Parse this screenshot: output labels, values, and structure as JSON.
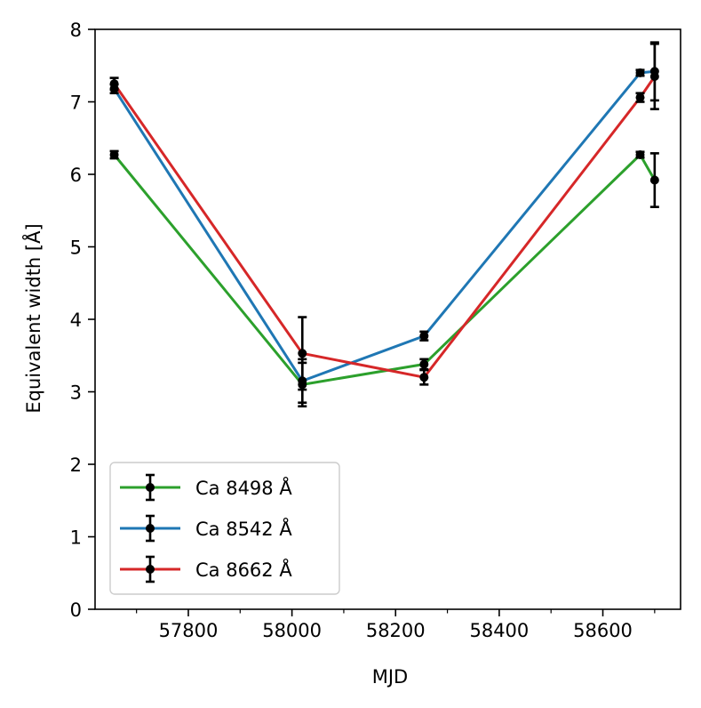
{
  "chart_data": {
    "type": "line",
    "title": "",
    "xlabel": "MJD",
    "ylabel": "Equivalent width [Å]",
    "xlim": [
      57620,
      58750
    ],
    "ylim": [
      0,
      8
    ],
    "x_ticks": [
      57800,
      58000,
      58200,
      58400,
      58600
    ],
    "x_tick_labels": [
      "57800",
      "58000",
      "58200",
      "58400",
      "58600"
    ],
    "x_minor_ticks": [
      57700,
      57900,
      58100,
      58300,
      58500,
      58700
    ],
    "y_ticks": [
      0,
      1,
      2,
      3,
      4,
      5,
      6,
      7,
      8
    ],
    "y_tick_labels": [
      "0",
      "1",
      "2",
      "3",
      "4",
      "5",
      "6",
      "7",
      "8"
    ],
    "legend_position": "lower-left",
    "marker_color": "#000000",
    "series": [
      {
        "name": "Ca 8498 Å",
        "color": "#2ca02c",
        "x": [
          57657,
          58020,
          58255,
          58672,
          58700
        ],
        "y": [
          6.27,
          3.1,
          3.38,
          6.27,
          5.92
        ],
        "err": [
          0.05,
          0.3,
          0.07,
          0.04,
          0.37
        ]
      },
      {
        "name": "Ca 8542 Å",
        "color": "#1f77b4",
        "x": [
          57657,
          58020,
          58255,
          58672,
          58700
        ],
        "y": [
          7.18,
          3.15,
          3.77,
          7.4,
          7.42
        ],
        "err": [
          0.06,
          0.3,
          0.06,
          0.04,
          0.4
        ]
      },
      {
        "name": "Ca 8662 Å",
        "color": "#d62728",
        "x": [
          57657,
          58020,
          58255,
          58672,
          58700
        ],
        "y": [
          7.25,
          3.53,
          3.2,
          7.06,
          7.35
        ],
        "err": [
          0.08,
          0.5,
          0.1,
          0.06,
          0.45
        ]
      }
    ]
  }
}
